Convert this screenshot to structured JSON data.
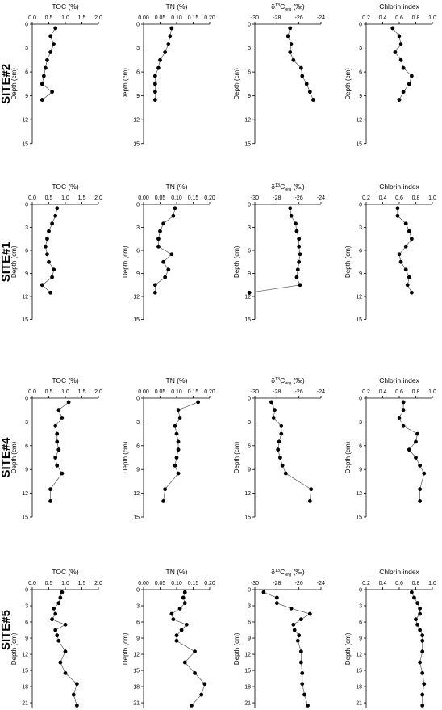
{
  "chart_data": [
    {
      "type": "line",
      "site": "SITE#2",
      "ylabel": "Depth (cm)",
      "ylim": [
        15,
        0
      ],
      "yticks": [
        0,
        3,
        6,
        9,
        12,
        15
      ],
      "panels": [
        {
          "id": "toc",
          "title": "TOC (%)",
          "xlim": [
            0,
            2
          ],
          "xticks": [
            "0.0",
            "0.5",
            "1.0",
            "1.5",
            "2.0"
          ],
          "tickvals": [
            0,
            0.5,
            1,
            1.5,
            2
          ],
          "depth": [
            0.5,
            1.5,
            2.5,
            3.5,
            4.5,
            5.5,
            6.5,
            7.5,
            8.5,
            9.5
          ],
          "values": [
            0.7,
            0.55,
            0.65,
            0.55,
            0.45,
            0.4,
            0.35,
            0.3,
            0.6,
            0.3
          ]
        },
        {
          "id": "tn",
          "title": "TN (%)",
          "xlim": [
            0,
            0.2
          ],
          "xticks": [
            "0.00",
            "0.05",
            "0.10",
            "0.15",
            "0.20"
          ],
          "tickvals": [
            0,
            0.05,
            0.1,
            0.15,
            0.2
          ],
          "depth": [
            0.5,
            1.5,
            2.5,
            3.5,
            4.5,
            5.5,
            6.5,
            7.5,
            8.5,
            9.5
          ],
          "values": [
            0.085,
            0.08,
            0.075,
            0.065,
            0.05,
            0.045,
            0.035,
            0.035,
            0.035,
            0.035
          ]
        },
        {
          "id": "d13c",
          "title": "δ13Corg (‰)",
          "title_parts": [
            "δ",
            "13",
            "C",
            "org",
            " (‰)"
          ],
          "xlim": [
            -30,
            -24
          ],
          "xticks": [
            "-30",
            "-28",
            "-26",
            "-24"
          ],
          "tickvals": [
            -30,
            -28,
            -26,
            -24
          ],
          "depth": [
            0.5,
            1.5,
            2.5,
            3.5,
            4.5,
            5.5,
            6.5,
            7.5,
            8.5,
            9.5
          ],
          "values": [
            -26.8,
            -27,
            -26.7,
            -26.8,
            -26.5,
            -25.8,
            -25.7,
            -25.3,
            -25,
            -24.7
          ]
        },
        {
          "id": "chl",
          "title": "Chlorin index",
          "xlim": [
            0.2,
            1.0
          ],
          "xticks": [
            "0.2",
            "0.4",
            "0.6",
            "0.8",
            "1.0"
          ],
          "tickvals": [
            0.2,
            0.4,
            0.6,
            0.8,
            1.0
          ],
          "depth": [
            0.5,
            1.5,
            2.5,
            3.5,
            4.5,
            5.5,
            6.5,
            7.5,
            8.5,
            9.5
          ],
          "values": [
            0.52,
            0.6,
            0.62,
            0.55,
            0.62,
            0.65,
            0.75,
            0.72,
            0.65,
            0.6
          ]
        }
      ]
    },
    {
      "type": "line",
      "site": "SITE#1",
      "ylabel": "Depth (cm)",
      "ylim": [
        15,
        0
      ],
      "yticks": [
        0,
        3,
        6,
        9,
        12,
        15
      ],
      "panels": [
        {
          "id": "toc",
          "title": "TOC (%)",
          "xlim": [
            0,
            2
          ],
          "xticks": [
            "0.0",
            "0.5",
            "1.0",
            "1.5",
            "2.0"
          ],
          "tickvals": [
            0,
            0.5,
            1,
            1.5,
            2
          ],
          "depth": [
            0.5,
            1.5,
            2.5,
            3.5,
            4.5,
            5.5,
            6.5,
            7.5,
            8.5,
            9.5,
            10.5,
            11.5
          ],
          "values": [
            0.75,
            0.7,
            0.6,
            0.5,
            0.45,
            0.4,
            0.45,
            0.5,
            0.65,
            0.6,
            0.3,
            0.55
          ]
        },
        {
          "id": "tn",
          "title": "TN (%)",
          "xlim": [
            0,
            0.2
          ],
          "xticks": [
            "0.00",
            "0.05",
            "0.10",
            "0.15",
            "0.20"
          ],
          "tickvals": [
            0,
            0.05,
            0.1,
            0.15,
            0.2
          ],
          "depth": [
            0.5,
            1.5,
            2.5,
            3.5,
            4.5,
            5.5,
            6.5,
            7.5,
            8.5,
            9.5,
            10.5,
            11.5
          ],
          "values": [
            0.095,
            0.09,
            0.06,
            0.05,
            0.045,
            0.045,
            0.085,
            0.06,
            0.075,
            0.065,
            0.035,
            0.035
          ]
        },
        {
          "id": "d13c",
          "title": "δ13Corg (‰)",
          "title_parts": [
            "δ",
            "13",
            "C",
            "org",
            " (‰)"
          ],
          "xlim": [
            -30,
            -24
          ],
          "xticks": [
            "-30",
            "-28",
            "-26",
            "-24"
          ],
          "tickvals": [
            -30,
            -28,
            -26,
            -24
          ],
          "depth": [
            0.5,
            1.5,
            2.5,
            3.5,
            4.5,
            5.5,
            6.5,
            7.5,
            8.5,
            9.5,
            10.5,
            11.5
          ],
          "values": [
            -26.8,
            -26.7,
            -26.3,
            -26.2,
            -26,
            -26,
            -25.9,
            -26,
            -26.1,
            -26.2,
            -25.9,
            -30.5
          ]
        },
        {
          "id": "chl",
          "title": "Chlorin index",
          "xlim": [
            0.2,
            1.0
          ],
          "xticks": [
            "0.2",
            "0.4",
            "0.6",
            "0.8",
            "1.0"
          ],
          "tickvals": [
            0.2,
            0.4,
            0.6,
            0.8,
            1.0
          ],
          "depth": [
            0.5,
            1.5,
            2.5,
            3.5,
            4.5,
            5.5,
            6.5,
            7.5,
            8.5,
            9.5,
            10.5,
            11.5
          ],
          "values": [
            0.58,
            0.58,
            0.68,
            0.72,
            0.75,
            0.68,
            0.6,
            0.62,
            0.68,
            0.72,
            0.7,
            0.75
          ]
        }
      ]
    },
    {
      "type": "line",
      "site": "SITE#4",
      "ylabel": "Depth (cm)",
      "ylim": [
        15,
        0
      ],
      "yticks": [
        0,
        3,
        6,
        9,
        12,
        15
      ],
      "panels": [
        {
          "id": "toc",
          "title": "TOC (%)",
          "xlim": [
            0,
            2
          ],
          "xticks": [
            "0.0",
            "0.5",
            "1.0",
            "1.5",
            "2.0"
          ],
          "tickvals": [
            0,
            0.5,
            1,
            1.5,
            2
          ],
          "depth": [
            0.5,
            1.5,
            2.5,
            3.5,
            4.5,
            5.5,
            6.5,
            7.5,
            8.5,
            9.5,
            11.5,
            13.0
          ],
          "values": [
            1.1,
            0.8,
            0.9,
            0.7,
            0.75,
            0.75,
            0.8,
            0.7,
            0.75,
            0.9,
            0.55,
            0.55
          ]
        },
        {
          "id": "tn",
          "title": "TN (%)",
          "xlim": [
            0,
            0.2
          ],
          "xticks": [
            "0.00",
            "0.05",
            "0.10",
            "0.15",
            "0.20"
          ],
          "tickvals": [
            0,
            0.05,
            0.1,
            0.15,
            0.2
          ],
          "depth": [
            0.5,
            1.5,
            2.5,
            3.5,
            4.5,
            5.5,
            6.5,
            7.5,
            8.5,
            9.5,
            11.5,
            13.0
          ],
          "values": [
            0.165,
            0.105,
            0.11,
            0.095,
            0.1,
            0.105,
            0.105,
            0.1,
            0.095,
            0.105,
            0.065,
            0.06
          ]
        },
        {
          "id": "d13c",
          "title": "δ13Corg (‰)",
          "title_parts": [
            "δ",
            "13",
            "C",
            "org",
            " (‰)"
          ],
          "xlim": [
            -30,
            -24
          ],
          "xticks": [
            "-30",
            "-28",
            "-26",
            "-24"
          ],
          "tickvals": [
            -30,
            -28,
            -26,
            -24
          ],
          "depth": [
            0.5,
            1.5,
            2.5,
            3.5,
            4.5,
            5.5,
            6.5,
            7.5,
            8.5,
            9.5,
            11.5,
            13.0
          ],
          "values": [
            -28.5,
            -28.2,
            -28.3,
            -27.6,
            -27.6,
            -27.8,
            -27.9,
            -27.7,
            -27.5,
            -27.2,
            -24.9,
            -25.0
          ]
        },
        {
          "id": "chl",
          "title": "Chlorin index",
          "xlim": [
            0.2,
            1.0
          ],
          "xticks": [
            "0.2",
            "0.4",
            "0.6",
            "0.8",
            "1.0"
          ],
          "tickvals": [
            0.2,
            0.4,
            0.6,
            0.8,
            1.0
          ],
          "depth": [
            0.5,
            1.5,
            2.5,
            3.5,
            4.5,
            5.5,
            6.5,
            7.5,
            8.5,
            9.5,
            11.5,
            13.0
          ],
          "values": [
            0.65,
            0.65,
            0.6,
            0.65,
            0.82,
            0.8,
            0.72,
            0.8,
            0.85,
            0.9,
            0.85,
            0.85
          ]
        }
      ]
    },
    {
      "type": "line",
      "site": "SITE#5",
      "ylabel": "Depth (cm)",
      "ylim": [
        22,
        0
      ],
      "yticks": [
        0,
        3,
        6,
        9,
        12,
        15,
        18,
        21
      ],
      "panels": [
        {
          "id": "toc",
          "title": "TOC (%)",
          "xlim": [
            0,
            2
          ],
          "xticks": [
            "0.0",
            "0.5",
            "1.0",
            "1.5",
            "2.0"
          ],
          "tickvals": [
            0,
            0.5,
            1,
            1.5,
            2
          ],
          "depth": [
            0.5,
            1.5,
            2.5,
            3.5,
            4.5,
            5.5,
            6.5,
            7.5,
            8.5,
            9.5,
            11.5,
            13.5,
            15.5,
            17.5,
            19.5,
            21.5
          ],
          "values": [
            0.9,
            0.85,
            0.8,
            0.65,
            0.7,
            0.6,
            1.0,
            0.7,
            0.75,
            0.8,
            1.0,
            0.85,
            1.0,
            1.35,
            1.25,
            1.35
          ]
        },
        {
          "id": "tn",
          "title": "TN (%)",
          "xlim": [
            0,
            0.2
          ],
          "xticks": [
            "0.00",
            "0.05",
            "0.10",
            "0.15",
            "0.20"
          ],
          "tickvals": [
            0,
            0.05,
            0.1,
            0.15,
            0.2
          ],
          "depth": [
            0.5,
            1.5,
            2.5,
            3.5,
            4.5,
            5.5,
            6.5,
            7.5,
            8.5,
            9.5,
            11.5,
            13.5,
            15.5,
            17.5,
            19.5,
            21.5
          ],
          "values": [
            0.125,
            0.12,
            0.125,
            0.11,
            0.085,
            0.09,
            0.13,
            0.115,
            0.1,
            0.1,
            0.155,
            0.125,
            0.155,
            0.185,
            0.175,
            0.145
          ]
        },
        {
          "id": "d13c",
          "title": "δ13Corg (‰)",
          "title_parts": [
            "δ",
            "13",
            "C",
            "org",
            " (‰)"
          ],
          "xlim": [
            -30,
            -24
          ],
          "xticks": [
            "-30",
            "-28",
            "-26",
            "-24"
          ],
          "tickvals": [
            -30,
            -28,
            -26,
            -24
          ],
          "depth": [
            0.5,
            1.5,
            2.5,
            3.5,
            4.5,
            5.5,
            6.5,
            7.5,
            8.5,
            9.5,
            11.5,
            13.5,
            15.5,
            17.5,
            19.5,
            21.5
          ],
          "values": [
            -29.2,
            -28,
            -28,
            -26.7,
            -25,
            -25.8,
            -26.5,
            -26.4,
            -26,
            -26.1,
            -25.8,
            -25.8,
            -25.7,
            -25.7,
            -25.5,
            -25.2
          ]
        },
        {
          "id": "chl",
          "title": "Chlorin index",
          "xlim": [
            0.2,
            1.0
          ],
          "xticks": [
            "0.2",
            "0.4",
            "0.6",
            "0.8",
            "1.0"
          ],
          "tickvals": [
            0.2,
            0.4,
            0.6,
            0.8,
            1.0
          ],
          "depth": [
            0.5,
            1.5,
            2.5,
            3.5,
            4.5,
            5.5,
            6.5,
            7.5,
            8.5,
            9.5,
            11.5,
            13.5,
            15.5,
            17.5,
            19.5,
            21.5
          ],
          "values": [
            0.75,
            0.78,
            0.82,
            0.85,
            0.85,
            0.8,
            0.82,
            0.85,
            0.88,
            0.88,
            0.88,
            0.85,
            0.88,
            0.9,
            0.88,
            0.88
          ]
        }
      ]
    }
  ]
}
